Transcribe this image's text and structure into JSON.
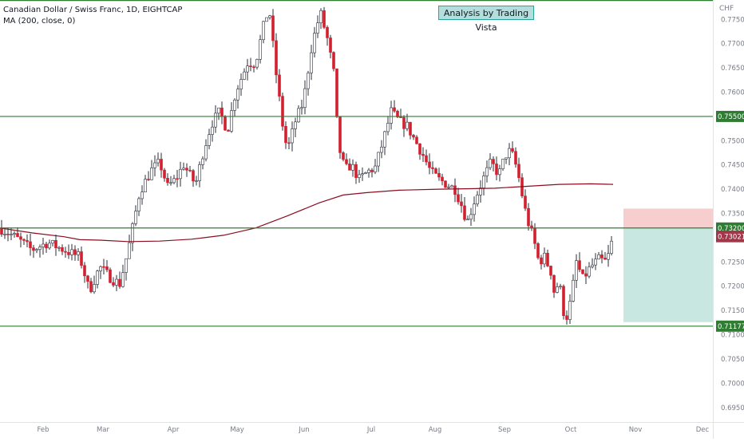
{
  "chart_data": {
    "type": "candlestick",
    "title": "Canadian Dollar / Swiss Franc, 1D, EIGHTCAP",
    "indicator": "MA (200, close, 0)",
    "annotation": "Analysis by Trading Vista",
    "currency": "CHF",
    "ylim": [
      0.692,
      0.779
    ],
    "y_ticks": [
      "0.77500",
      "0.77000",
      "0.76500",
      "0.76000",
      "0.75500",
      "0.75000",
      "0.74500",
      "0.74000",
      "0.73500",
      "0.73000",
      "0.72500",
      "0.72000",
      "0.71500",
      "0.71000",
      "0.70500",
      "0.70000",
      "0.69500"
    ],
    "x_ticks": [
      "Feb",
      "Mar",
      "Apr",
      "May",
      "Jun",
      "Jul",
      "Aug",
      "Sep",
      "Oct",
      "Nov",
      "Dec"
    ],
    "horizontal_levels": [
      {
        "price": 0.7789,
        "label": ""
      },
      {
        "price": 0.755,
        "label": "0.75500"
      },
      {
        "price": 0.732,
        "label": "0.73200"
      },
      {
        "price": 0.71177,
        "label": "0.71177"
      }
    ],
    "last_price": {
      "price": 0.73021,
      "label": "0.73021"
    },
    "trade_box": {
      "entry": 0.732,
      "stop": 0.736,
      "target": 0.7126
    },
    "ma_points": [
      [
        0,
        0.732
      ],
      [
        40,
        0.731
      ],
      [
        80,
        0.7302
      ],
      [
        100,
        0.7296
      ],
      [
        125,
        0.7295
      ],
      [
        160,
        0.7292
      ],
      [
        200,
        0.7293
      ],
      [
        240,
        0.7297
      ],
      [
        280,
        0.7305
      ],
      [
        320,
        0.732
      ],
      [
        360,
        0.7345
      ],
      [
        400,
        0.7372
      ],
      [
        430,
        0.7388
      ],
      [
        460,
        0.7393
      ],
      [
        500,
        0.7398
      ],
      [
        550,
        0.74
      ],
      [
        590,
        0.7401
      ],
      [
        620,
        0.7402
      ],
      [
        650,
        0.7405
      ],
      [
        700,
        0.741
      ],
      [
        740,
        0.7411
      ],
      [
        768,
        0.741
      ]
    ],
    "anchors": [
      [
        0,
        0.732
      ],
      [
        20,
        0.73
      ],
      [
        40,
        0.7275
      ],
      [
        60,
        0.729
      ],
      [
        80,
        0.7275
      ],
      [
        100,
        0.726
      ],
      [
        112,
        0.719
      ],
      [
        125,
        0.724
      ],
      [
        140,
        0.7215
      ],
      [
        150,
        0.7205
      ],
      [
        160,
        0.727
      ],
      [
        175,
        0.7395
      ],
      [
        190,
        0.744
      ],
      [
        200,
        0.7455
      ],
      [
        210,
        0.7405
      ],
      [
        220,
        0.742
      ],
      [
        230,
        0.745
      ],
      [
        245,
        0.741
      ],
      [
        255,
        0.748
      ],
      [
        265,
        0.7535
      ],
      [
        275,
        0.756
      ],
      [
        285,
        0.752
      ],
      [
        295,
        0.76
      ],
      [
        310,
        0.766
      ],
      [
        320,
        0.766
      ],
      [
        330,
        0.7735
      ],
      [
        337,
        0.7775
      ],
      [
        345,
        0.765
      ],
      [
        355,
        0.752
      ],
      [
        360,
        0.748
      ],
      [
        370,
        0.754
      ],
      [
        380,
        0.758
      ],
      [
        390,
        0.769
      ],
      [
        397,
        0.774
      ],
      [
        402,
        0.776
      ],
      [
        410,
        0.771
      ],
      [
        418,
        0.764
      ],
      [
        424,
        0.749
      ],
      [
        432,
        0.744
      ],
      [
        440,
        0.745
      ],
      [
        450,
        0.742
      ],
      [
        460,
        0.7435
      ],
      [
        470,
        0.7445
      ],
      [
        480,
        0.75
      ],
      [
        490,
        0.756
      ],
      [
        500,
        0.754
      ],
      [
        510,
        0.753
      ],
      [
        520,
        0.75
      ],
      [
        530,
        0.747
      ],
      [
        540,
        0.7435
      ],
      [
        550,
        0.742
      ],
      [
        560,
        0.741
      ],
      [
        570,
        0.74
      ],
      [
        580,
        0.736
      ],
      [
        585,
        0.733
      ],
      [
        595,
        0.738
      ],
      [
        605,
        0.742
      ],
      [
        615,
        0.7455
      ],
      [
        625,
        0.743
      ],
      [
        633,
        0.747
      ],
      [
        640,
        0.748
      ],
      [
        648,
        0.744
      ],
      [
        655,
        0.738
      ],
      [
        660,
        0.734
      ],
      [
        668,
        0.73
      ],
      [
        675,
        0.725
      ],
      [
        682,
        0.726
      ],
      [
        690,
        0.723
      ],
      [
        695,
        0.718
      ],
      [
        700,
        0.7215
      ],
      [
        708,
        0.7125
      ],
      [
        715,
        0.717
      ],
      [
        722,
        0.725
      ],
      [
        730,
        0.7215
      ],
      [
        740,
        0.724
      ],
      [
        750,
        0.7255
      ],
      [
        760,
        0.725
      ],
      [
        768,
        0.7302
      ]
    ]
  }
}
